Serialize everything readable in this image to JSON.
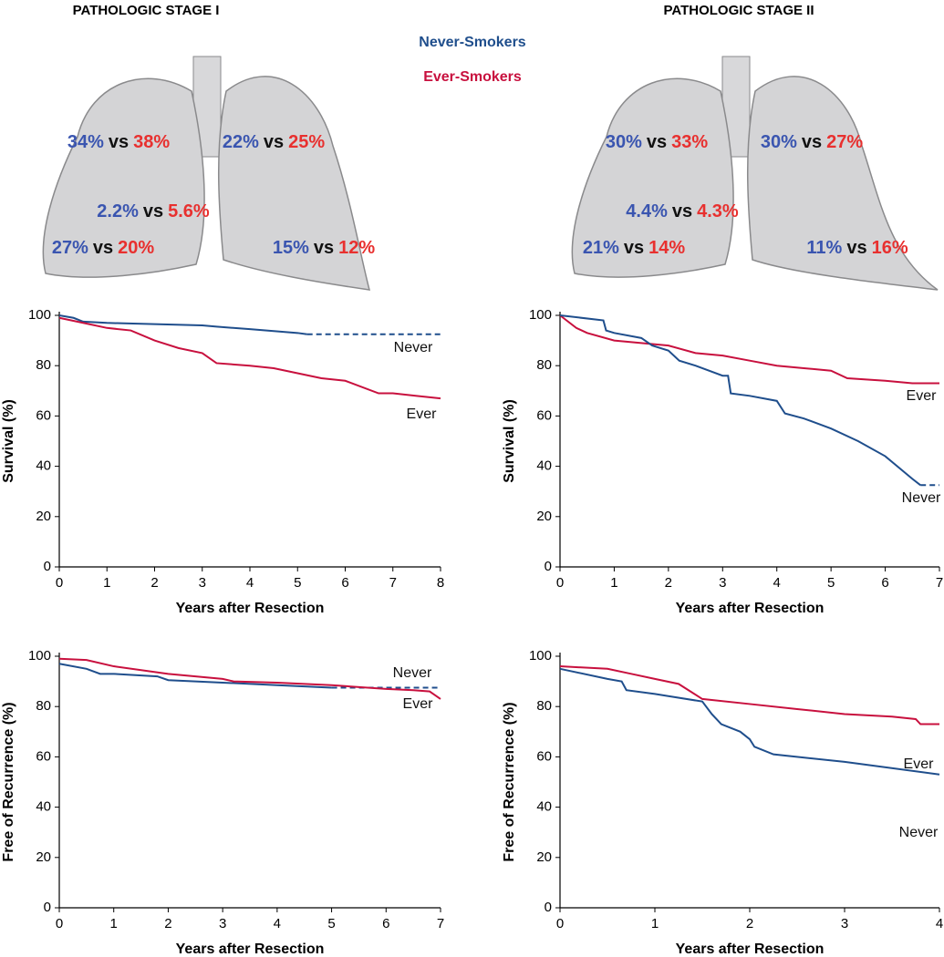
{
  "panels": [
    {
      "title": "PATHOLOGIC STAGE I",
      "lobes": [
        {
          "never": "34%",
          "ever": "38%"
        },
        {
          "never": "22%",
          "ever": "25%"
        },
        {
          "never": "2.2%",
          "ever": "5.6%"
        },
        {
          "never": "27%",
          "ever": "20%"
        },
        {
          "never": "15%",
          "ever": "12%"
        }
      ]
    },
    {
      "title": "PATHOLOGIC STAGE II",
      "lobes": [
        {
          "never": "30%",
          "ever": "33%"
        },
        {
          "never": "30%",
          "ever": "27%"
        },
        {
          "never": "4.4%",
          "ever": "4.3%"
        },
        {
          "never": "21%",
          "ever": "14%"
        },
        {
          "never": "11%",
          "ever": "16%"
        }
      ]
    }
  ],
  "legend": {
    "never": "Never-Smokers",
    "ever": "Ever-Smokers",
    "never_color": "#1f4e8c",
    "ever_color": "#c8103e"
  },
  "separator": "vs",
  "chart_data": [
    {
      "type": "line",
      "ylabel": "Survival (%)",
      "xlabel": "Years after Resection",
      "xlim": [
        0,
        8
      ],
      "xticks": [
        0,
        1,
        2,
        3,
        4,
        5,
        6,
        7,
        8
      ],
      "ylim": [
        0,
        100
      ],
      "yticks": [
        0,
        20,
        40,
        60,
        80,
        100
      ],
      "series": [
        {
          "name": "Never",
          "color": "#1f4e8c",
          "dashed_after": 5.2,
          "x": [
            0,
            0.3,
            0.5,
            1,
            2,
            3,
            3.3,
            4,
            5,
            5.2,
            8
          ],
          "values": [
            100,
            99,
            97.5,
            97,
            96.5,
            96,
            95.5,
            94.5,
            93,
            92.5,
            92.5
          ]
        },
        {
          "name": "Ever",
          "color": "#c8103e",
          "x": [
            0,
            0.5,
            1,
            1.5,
            2,
            2.5,
            3,
            3.3,
            4,
            4.5,
            5,
            5.5,
            6,
            6.7,
            7,
            7.5,
            8
          ],
          "values": [
            99,
            97,
            95,
            94,
            90,
            87,
            85,
            81,
            80,
            79,
            77,
            75,
            74,
            69,
            69,
            68,
            67
          ]
        }
      ]
    },
    {
      "type": "line",
      "ylabel": "Survival (%)",
      "xlabel": "Years after Resection",
      "xlim": [
        0,
        7
      ],
      "xticks": [
        0,
        1,
        2,
        3,
        4,
        5,
        6,
        7
      ],
      "ylim": [
        0,
        100
      ],
      "yticks": [
        0,
        20,
        40,
        60,
        80,
        100
      ],
      "series": [
        {
          "name": "Ever",
          "color": "#c8103e",
          "x": [
            0,
            0.3,
            0.5,
            1,
            1.5,
            2,
            2.5,
            3,
            3.5,
            4,
            4.5,
            5,
            5.3,
            6,
            6.5,
            7
          ],
          "values": [
            100,
            95,
            93,
            90,
            89,
            88,
            85,
            84,
            82,
            80,
            79,
            78,
            75,
            74,
            73,
            73
          ]
        },
        {
          "name": "Never",
          "color": "#1f4e8c",
          "dashed_after": 6.65,
          "x": [
            0,
            0.8,
            0.85,
            1,
            1.5,
            1.7,
            2,
            2.2,
            2.5,
            3,
            3.1,
            3.15,
            3.5,
            4,
            4.15,
            4.5,
            5,
            5.5,
            6,
            6.5,
            6.65,
            7
          ],
          "values": [
            100,
            98,
            94,
            93,
            91,
            88,
            86,
            82,
            80,
            76,
            76,
            69,
            68,
            66,
            61,
            59,
            55,
            50,
            44,
            35,
            32.5,
            32.5
          ]
        }
      ]
    },
    {
      "type": "line",
      "ylabel": "Free of Recurrence (%)",
      "xlabel": "Years after Resection",
      "xlim": [
        0,
        7
      ],
      "xticks": [
        0,
        1,
        2,
        3,
        4,
        5,
        6,
        7
      ],
      "ylim": [
        0,
        100
      ],
      "yticks": [
        0,
        20,
        40,
        60,
        80,
        100
      ],
      "series": [
        {
          "name": "Never",
          "color": "#1f4e8c",
          "dashed_after": 5,
          "x": [
            0,
            0.5,
            0.75,
            1,
            1.8,
            2,
            3,
            4,
            5,
            7
          ],
          "values": [
            97,
            95,
            93,
            93,
            92,
            90.5,
            89.5,
            88.5,
            87.5,
            87.5
          ]
        },
        {
          "name": "Ever",
          "color": "#c8103e",
          "x": [
            0,
            0.5,
            1,
            2,
            3,
            3.2,
            4,
            5,
            6,
            6.5,
            6.8,
            7
          ],
          "values": [
            99,
            98.5,
            96,
            93,
            91,
            90,
            89.5,
            88.5,
            87,
            86.5,
            86,
            83
          ]
        }
      ]
    },
    {
      "type": "line",
      "ylabel": "Free of Recurrence (%)",
      "xlabel": "Years after Resection",
      "xlim": [
        0,
        4
      ],
      "xticks": [
        0,
        1,
        2,
        3,
        4
      ],
      "ylim": [
        0,
        100
      ],
      "yticks": [
        0,
        20,
        40,
        60,
        80,
        100
      ],
      "series": [
        {
          "name": "Ever",
          "color": "#c8103e",
          "x": [
            0,
            0.5,
            0.75,
            1,
            1.25,
            1.5,
            2,
            2.5,
            3,
            3.5,
            3.75,
            3.8,
            4
          ],
          "values": [
            96,
            95,
            93,
            91,
            89,
            83,
            81,
            79,
            77,
            76,
            75,
            73,
            73
          ]
        },
        {
          "name": "Never",
          "color": "#1f4e8c",
          "x": [
            0,
            0.5,
            0.65,
            0.7,
            1,
            1.5,
            1.6,
            1.7,
            1.9,
            2,
            2.05,
            2.25,
            3,
            4
          ],
          "values": [
            95,
            91,
            90,
            86.5,
            85,
            82,
            77,
            73,
            70,
            67,
            64,
            61,
            58,
            53
          ]
        }
      ]
    }
  ]
}
